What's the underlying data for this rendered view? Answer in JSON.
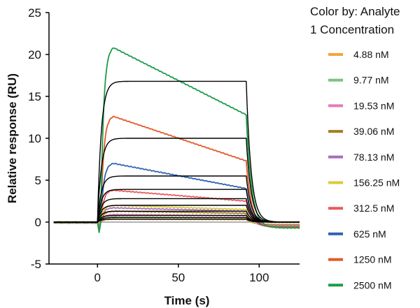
{
  "chart_data": {
    "type": "line",
    "title": "",
    "xlabel": "Time (s)",
    "ylabel": "Relative response (RU)",
    "xlim": [
      -30,
      125
    ],
    "ylim": [
      -5,
      25
    ],
    "xticks": [
      0,
      50,
      100
    ],
    "xtick_labels": [
      "0",
      "50",
      "100"
    ],
    "yticks": [
      -5,
      0,
      5,
      10,
      15,
      20,
      25
    ],
    "ytick_labels": [
      "-5",
      "0",
      "5",
      "10",
      "15",
      "20",
      "25"
    ],
    "legend": {
      "title": "Color by: Analyte 1 Concentration",
      "title_lines": [
        "Color by: Analyte",
        "1 Concentration"
      ],
      "position": "right"
    },
    "series": [
      {
        "name": "4.88 nM",
        "color": "#f5a43b",
        "peak": 0.35,
        "end": 0.3,
        "dip": 0.3
      },
      {
        "name": "9.77 nM",
        "color": "#7bc47f",
        "peak": 0.6,
        "end": 0.5,
        "dip": 0.4
      },
      {
        "name": "19.53 nM",
        "color": "#e879b9",
        "peak": 0.9,
        "end": 0.75,
        "dip": 0.5
      },
      {
        "name": "39.06 nM",
        "color": "#a67c1e",
        "peak": 1.3,
        "end": 1.05,
        "dip": 0.6
      },
      {
        "name": "78.13 nM",
        "color": "#a96fbd",
        "peak": 1.7,
        "end": 1.3,
        "dip": 0.7
      },
      {
        "name": "156.25 nM",
        "color": "#d8cb3c",
        "peak": 2.0,
        "end": 1.5,
        "dip": 0.8
      },
      {
        "name": "312.5 nM",
        "color": "#ea5a5a",
        "peak": 3.8,
        "end": 2.5,
        "dip": 0.9
      },
      {
        "name": "625 nM",
        "color": "#2e64b5",
        "peak": 7.0,
        "end": 4.0,
        "dip": 1.0
      },
      {
        "name": "1250 nM",
        "color": "#e3592a",
        "peak": 12.6,
        "end": 7.3,
        "dip": 1.1
      },
      {
        "name": "2500 nM",
        "color": "#1a9c4a",
        "peak": 20.8,
        "end": 12.8,
        "dip": 1.2
      }
    ],
    "fit_curves": {
      "color": "#000000",
      "plateaus": [
        0.35,
        0.55,
        0.8,
        1.3,
        2.0,
        2.8,
        3.9,
        5.5,
        10.0,
        16.8
      ]
    },
    "injection_start_s": 0,
    "injection_end_s": 92,
    "data_start_s": -27
  }
}
